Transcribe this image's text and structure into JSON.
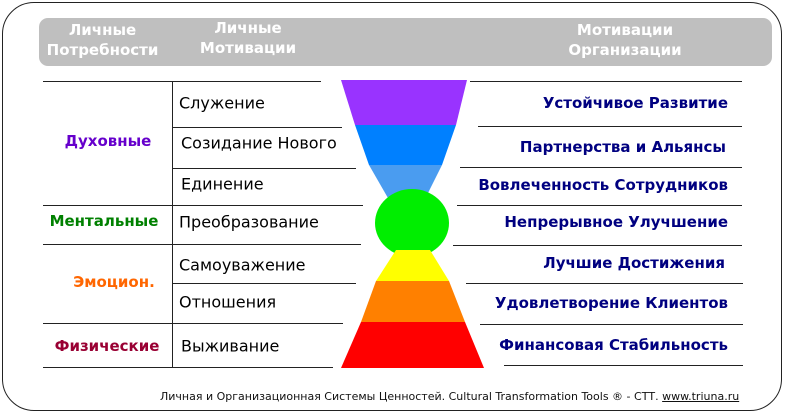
{
  "header": {
    "col1": "Личные\nПотребности",
    "col2": "Личные\nМотивации",
    "col3": "Мотивации\nОрганизации"
  },
  "needs": [
    {
      "label": "Духовные",
      "color": "#6600cc"
    },
    {
      "label": "Ментальные",
      "color": "#008000"
    },
    {
      "label": "Эмоцион.",
      "color": "#ff6600"
    },
    {
      "label": "Физические",
      "color": "#990033"
    }
  ],
  "motivations": [
    "Служение",
    "Созидание Нового",
    "Единение",
    "Преобразование",
    "Самоуважение",
    "Отношения",
    "Выживание"
  ],
  "org_motivations": [
    "Устойчивое Развитие",
    "Партнерства и Альянсы",
    "Вовлеченность Сотрудников",
    "Непрерывное Улучшение",
    "Лучшие Достижения",
    "Удовлетворение Клиентов",
    "Финансовая Стабильность"
  ],
  "level_colors": [
    "#9933ff",
    "#0080ff",
    "#4a9cf0",
    "#00ee00",
    "#ffff00",
    "#ff8000",
    "#ff0000"
  ],
  "footer": {
    "text": "Личная и Организационная Системы Ценностей. Cultural Transformation Tools ® - СТТ. ",
    "link": "www.triuna.ru"
  }
}
